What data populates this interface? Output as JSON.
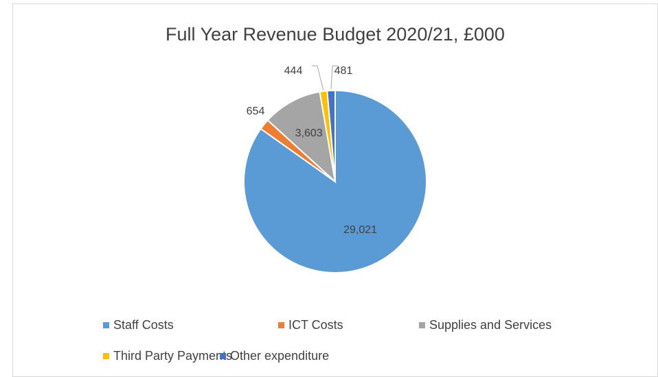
{
  "chart_data": {
    "type": "pie",
    "title": "Full Year Revenue Budget 2020/21, £000",
    "categories": [
      "Staff Costs",
      "ICT Costs",
      "Supplies and Services",
      "Third Party Payments",
      "Other expenditure"
    ],
    "values": [
      29021,
      654,
      3603,
      444,
      481
    ],
    "value_labels": [
      "29,021",
      "654",
      "3,603",
      "444",
      "481"
    ],
    "colors": [
      "#5b9bd5",
      "#ed7d31",
      "#a5a5a5",
      "#ffc000",
      "#4472c4"
    ],
    "legend": "bottom"
  }
}
